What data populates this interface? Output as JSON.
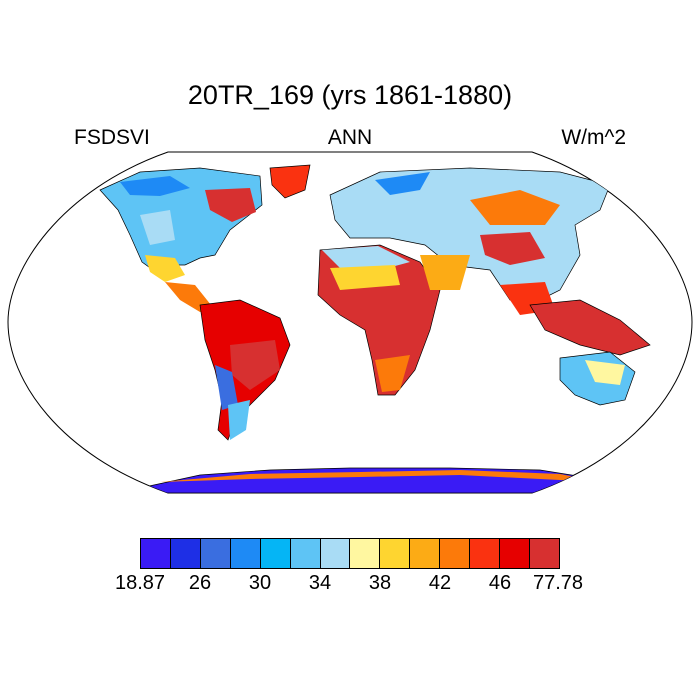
{
  "title": "20TR_169 (yrs 1861-1880)",
  "left_label": "FSDSVI",
  "center_label": "ANN",
  "right_label": "W/m^2",
  "colorbar": {
    "colors": [
      "#3a1bf5",
      "#1e2fe6",
      "#3a6ee0",
      "#1e8af5",
      "#05b5f5",
      "#5ec4f5",
      "#a9dcf5",
      "#fff7a0",
      "#fed530",
      "#fcab15",
      "#fc7a0a",
      "#fa3210",
      "#e60000",
      "#d73030"
    ],
    "labels": [
      "18.87",
      "26",
      "30",
      "34",
      "38",
      "42",
      "46",
      "77.78"
    ]
  }
}
